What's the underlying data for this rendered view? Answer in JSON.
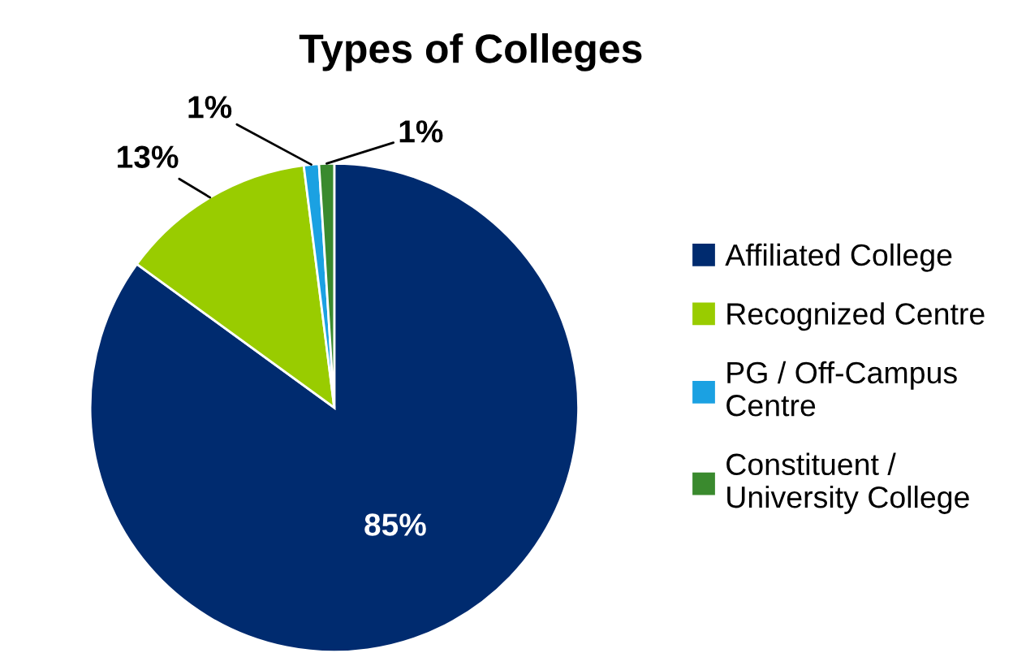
{
  "chart_data": {
    "type": "pie",
    "title": "Types of Colleges",
    "categories": [
      "Affiliated College",
      "Recognized Centre",
      "PG / Off-Campus Centre",
      "Constituent / University College"
    ],
    "values": [
      85,
      13,
      1,
      1
    ],
    "colors": [
      "#002b6f",
      "#99cc00",
      "#1ba1e2",
      "#3a8a2e"
    ],
    "value_labels": [
      "85%",
      "13%",
      "1%",
      "1%"
    ],
    "legend": "right"
  }
}
